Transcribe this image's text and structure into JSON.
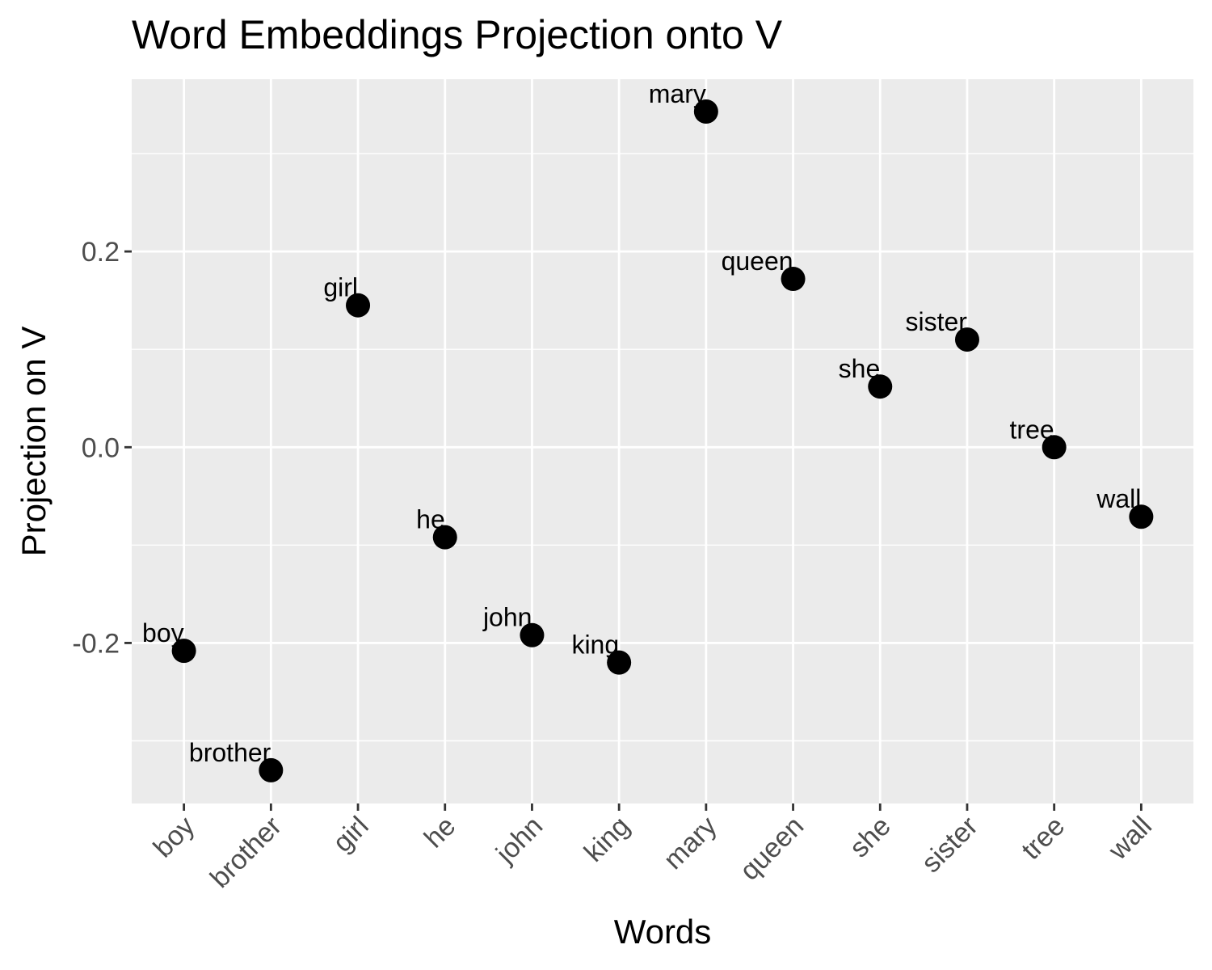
{
  "chart_data": {
    "type": "scatter",
    "title": "Word Embeddings Projection onto V",
    "xlabel": "Words",
    "ylabel": "Projection on V",
    "categories": [
      "boy",
      "brother",
      "girl",
      "he",
      "john",
      "king",
      "mary",
      "queen",
      "she",
      "sister",
      "tree",
      "wall"
    ],
    "values": [
      -0.208,
      -0.33,
      0.145,
      -0.092,
      -0.192,
      -0.22,
      0.343,
      0.172,
      0.062,
      0.11,
      0.0,
      -0.071
    ],
    "point_labels": [
      "boy",
      "brother",
      "girl",
      "he",
      "john",
      "king",
      "mary",
      "queen",
      "she",
      "sister",
      "tree",
      "wall"
    ],
    "y_ticks": [
      -0.2,
      0.0,
      0.2
    ],
    "y_tick_labels": [
      "-0.2",
      "0.0",
      "0.2"
    ],
    "ylim": [
      -0.364,
      0.376
    ],
    "grid": true,
    "legend": "none",
    "colors": {
      "panel": "#ebebeb",
      "grid": "#ffffff",
      "point": "#000000",
      "tick_text": "#4d4d4d",
      "axis_tick": "#333333"
    }
  }
}
